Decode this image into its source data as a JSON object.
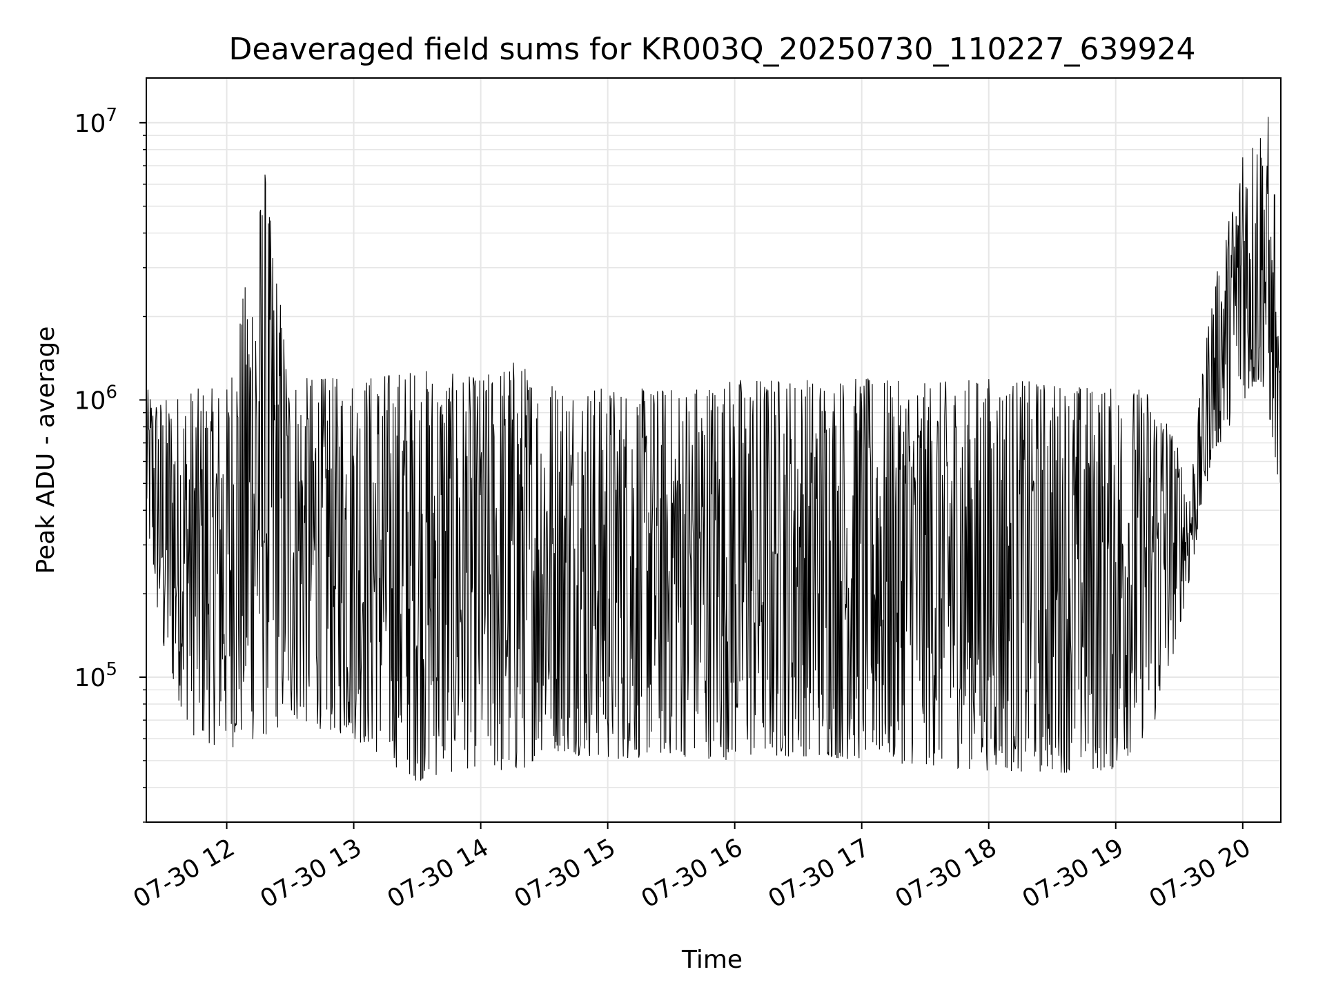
{
  "chart_data": {
    "type": "line",
    "title": "Deaveraged field sums for KR003Q_20250730_110227_639924",
    "xlabel": "Time",
    "ylabel": "Peak ADU - average",
    "yscale": "log",
    "xlim": [
      "2025-07-30 11:22",
      "2025-07-30 20:18"
    ],
    "ylim": [
      30000,
      14500000
    ],
    "grid": true,
    "line_color": "#000000",
    "grid_color": "#e6e6e6",
    "x_ticks": [
      {
        "x": "2025-07-30 12:00",
        "label": "07-30 12"
      },
      {
        "x": "2025-07-30 13:00",
        "label": "07-30 13"
      },
      {
        "x": "2025-07-30 14:00",
        "label": "07-30 14"
      },
      {
        "x": "2025-07-30 15:00",
        "label": "07-30 15"
      },
      {
        "x": "2025-07-30 16:00",
        "label": "07-30 16"
      },
      {
        "x": "2025-07-30 17:00",
        "label": "07-30 17"
      },
      {
        "x": "2025-07-30 18:00",
        "label": "07-30 18"
      },
      {
        "x": "2025-07-30 19:00",
        "label": "07-30 19"
      },
      {
        "x": "2025-07-30 20:00",
        "label": "07-30 20"
      }
    ],
    "y_ticks": [
      {
        "value": 100000,
        "base": "10",
        "exp": "5"
      },
      {
        "value": 1000000,
        "base": "10",
        "exp": "6"
      },
      {
        "value": 10000000,
        "base": "10",
        "exp": "7"
      }
    ],
    "envelope": [
      {
        "t": "2025-07-30 11:22",
        "low": 350000,
        "high": 1100000
      },
      {
        "t": "2025-07-30 11:30",
        "low": 110000,
        "high": 1000000
      },
      {
        "t": "2025-07-30 11:45",
        "low": 60000,
        "high": 1100000
      },
      {
        "t": "2025-07-30 12:00",
        "low": 55000,
        "high": 1100000
      },
      {
        "t": "2025-07-30 12:18",
        "low": 60000,
        "high": 6500000
      },
      {
        "t": "2025-07-30 12:30",
        "low": 70000,
        "high": 1200000
      },
      {
        "t": "2025-07-30 13:00",
        "low": 60000,
        "high": 1200000
      },
      {
        "t": "2025-07-30 13:30",
        "low": 42000,
        "high": 1300000
      },
      {
        "t": "2025-07-30 14:00",
        "low": 48000,
        "high": 1200000
      },
      {
        "t": "2025-07-30 14:15",
        "low": 42000,
        "high": 1400000
      },
      {
        "t": "2025-07-30 14:30",
        "low": 55000,
        "high": 1200000
      },
      {
        "t": "2025-07-30 15:00",
        "low": 50000,
        "high": 1100000
      },
      {
        "t": "2025-07-30 15:30",
        "low": 52000,
        "high": 1100000
      },
      {
        "t": "2025-07-30 16:00",
        "low": 50000,
        "high": 1200000
      },
      {
        "t": "2025-07-30 16:30",
        "low": 52000,
        "high": 1200000
      },
      {
        "t": "2025-07-30 17:00",
        "low": 50000,
        "high": 1200000
      },
      {
        "t": "2025-07-30 17:30",
        "low": 48000,
        "high": 1150000
      },
      {
        "t": "2025-07-30 18:00",
        "low": 46000,
        "high": 1200000
      },
      {
        "t": "2025-07-30 18:30",
        "low": 45000,
        "high": 1150000
      },
      {
        "t": "2025-07-30 19:00",
        "low": 46000,
        "high": 1100000
      },
      {
        "t": "2025-07-30 19:20",
        "low": 70000,
        "high": 1100000
      },
      {
        "t": "2025-07-30 19:35",
        "low": 220000,
        "high": 500000
      },
      {
        "t": "2025-07-30 19:45",
        "low": 600000,
        "high": 2300000
      },
      {
        "t": "2025-07-30 20:00",
        "low": 1000000,
        "high": 7500000
      },
      {
        "t": "2025-07-30 20:10",
        "low": 1100000,
        "high": 10500000
      },
      {
        "t": "2025-07-30 20:18",
        "low": 450000,
        "high": 1200000
      }
    ],
    "spikes": [
      {
        "t": "2025-07-30 12:18",
        "value": 6500000
      },
      {
        "t": "2025-07-30 20:00",
        "value": 7500000
      },
      {
        "t": "2025-07-30 20:12",
        "value": 10500000
      },
      {
        "t": "2025-07-30 20:15",
        "value": 5500000
      }
    ]
  }
}
